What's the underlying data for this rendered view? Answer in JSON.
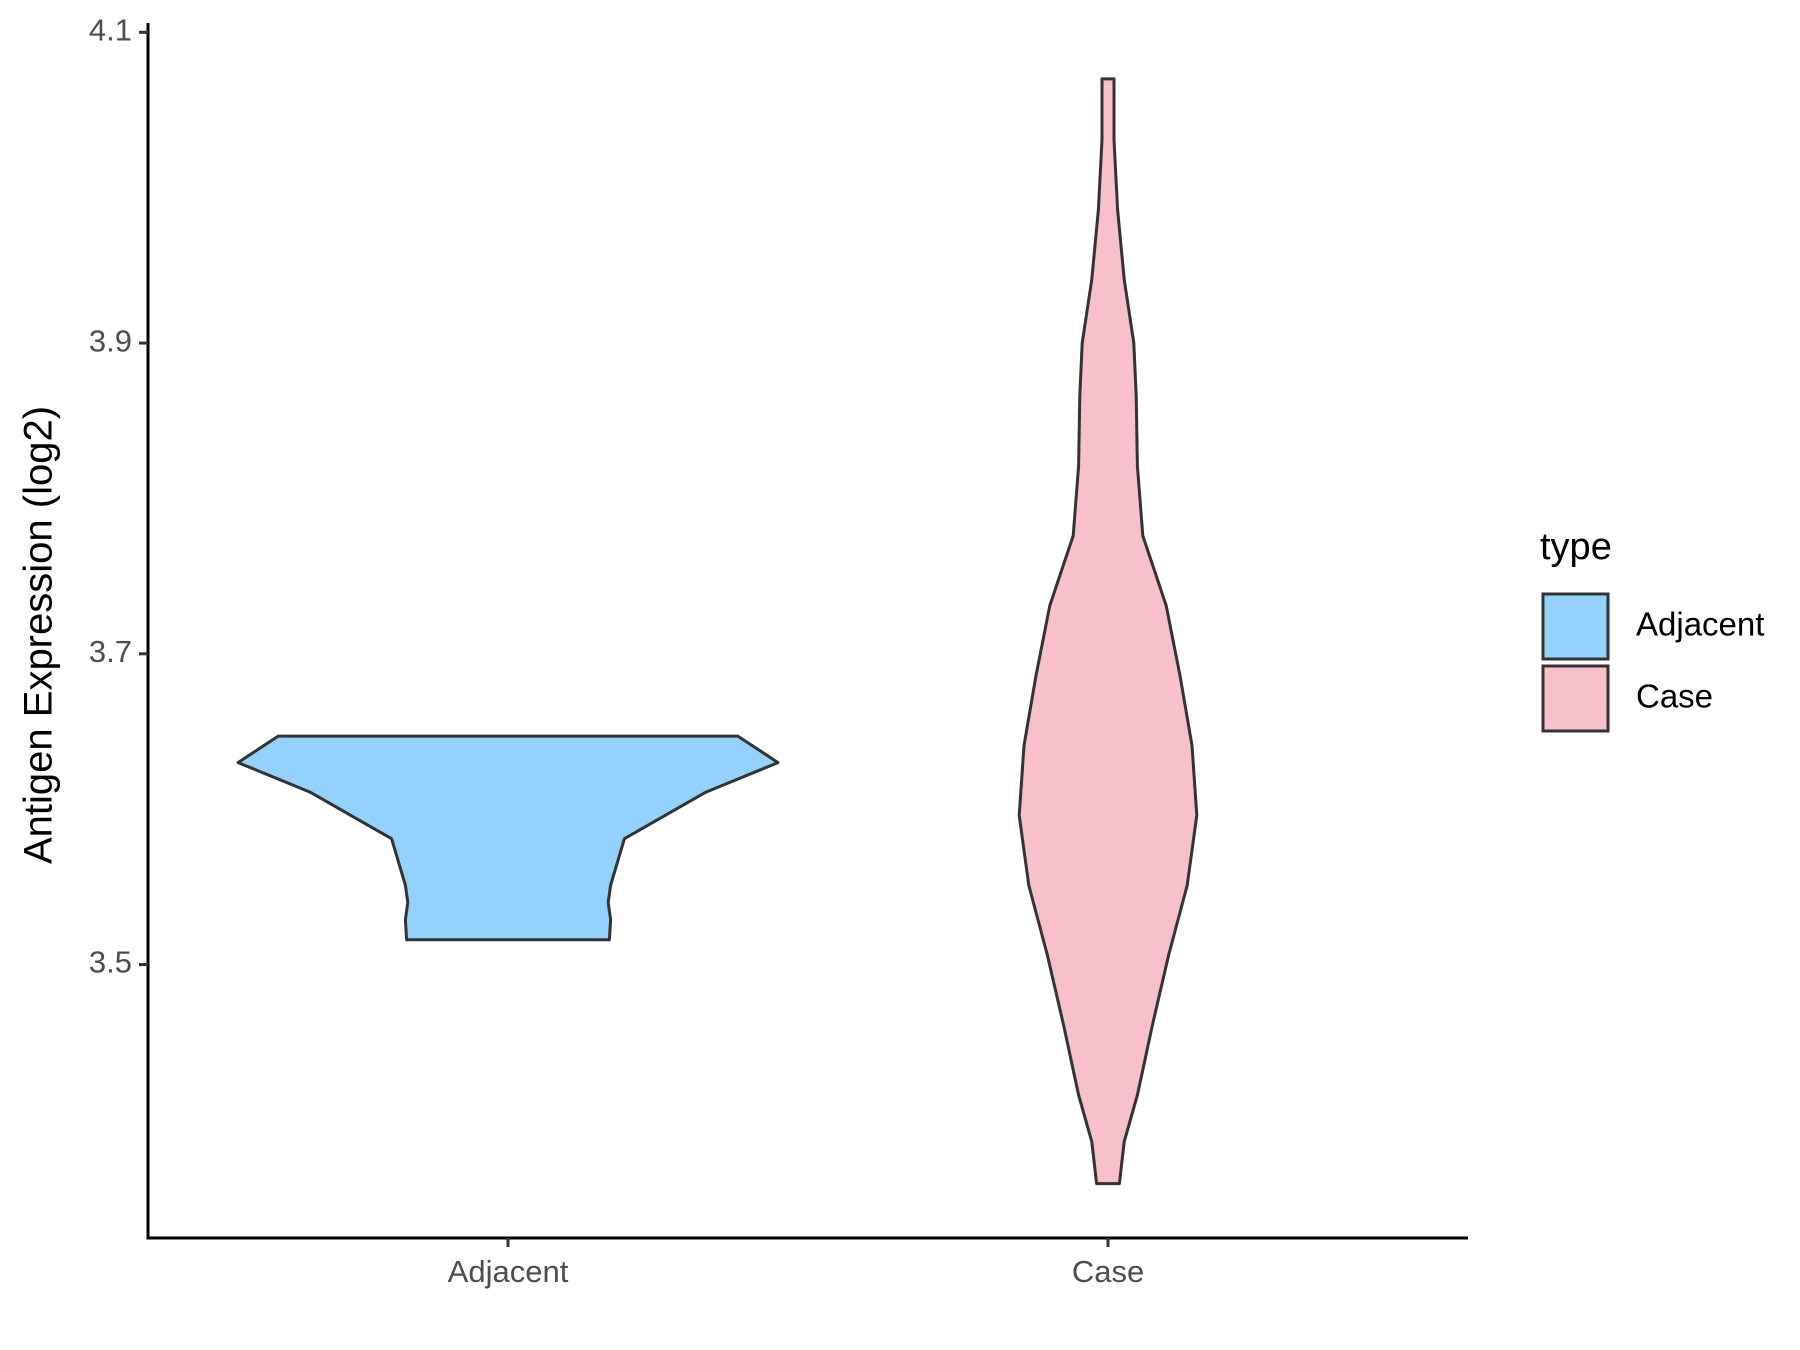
{
  "chart_data": {
    "type": "violin",
    "y_label": "Antigen Expression (log2)",
    "categories": [
      "Adjacent",
      "Case"
    ],
    "legend_title": "type",
    "series": [
      {
        "name": "Adjacent",
        "color": "#92d2fd",
        "y": [
          3.516,
          3.529,
          3.54,
          3.551,
          3.581,
          3.611,
          3.63,
          3.647
        ],
        "width": [
          0.169,
          0.171,
          0.167,
          0.171,
          0.194,
          0.33,
          0.45,
          0.383
        ]
      },
      {
        "name": "Case",
        "color": "#f7c0cb",
        "y": [
          3.359,
          3.386,
          3.416,
          3.461,
          3.506,
          3.551,
          3.596,
          3.641,
          3.686,
          3.731,
          3.776,
          3.821,
          3.866,
          3.9,
          3.941,
          3.986,
          4.031,
          4.07
        ],
        "width": [
          0.019,
          0.027,
          0.049,
          0.074,
          0.101,
          0.132,
          0.148,
          0.14,
          0.12,
          0.097,
          0.058,
          0.049,
          0.047,
          0.043,
          0.027,
          0.016,
          0.01,
          0.01
        ]
      }
    ],
    "ylim": [
      3.324,
      4.106
    ],
    "yticks": [
      3.5,
      3.7,
      3.9,
      4.1
    ],
    "grid": false,
    "legend_position": "right"
  }
}
